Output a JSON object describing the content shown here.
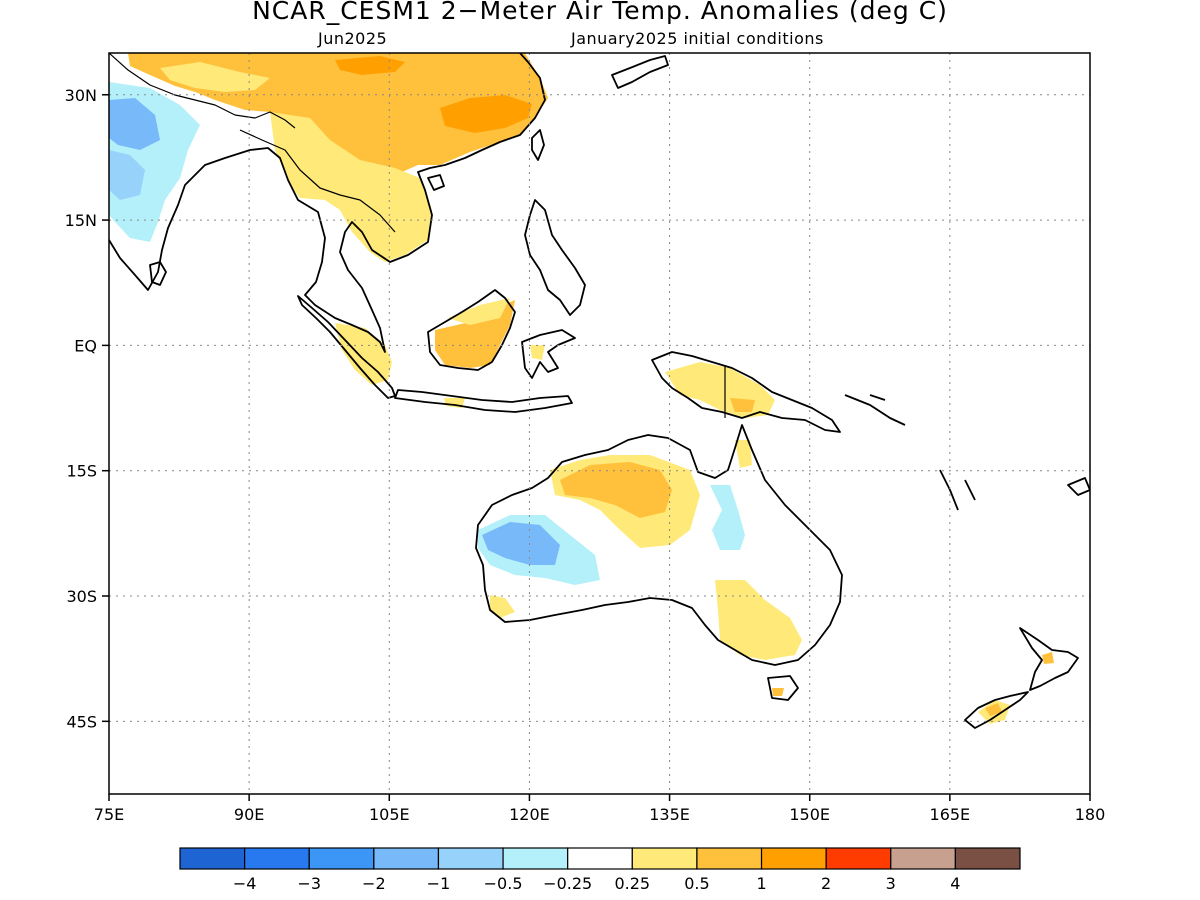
{
  "title": "NCAR_CESM1 2−Meter Air Temp. Anomalies (deg C)",
  "subtitle_left": "Jun2025",
  "subtitle_right": "January2025 initial conditions",
  "chart_data": {
    "type": "map",
    "lon_range": [
      75,
      180
    ],
    "lat_range": [
      -55,
      35
    ],
    "lat_ticks": [
      {
        "value": 30,
        "label": "30N"
      },
      {
        "value": 15,
        "label": "15N"
      },
      {
        "value": 0,
        "label": "EQ"
      },
      {
        "value": -15,
        "label": "15S"
      },
      {
        "value": -30,
        "label": "30S"
      },
      {
        "value": -45,
        "label": "45S"
      }
    ],
    "lon_ticks": [
      {
        "value": 75,
        "label": "75E"
      },
      {
        "value": 90,
        "label": "90E"
      },
      {
        "value": 105,
        "label": "105E"
      },
      {
        "value": 120,
        "label": "120E"
      },
      {
        "value": 135,
        "label": "135E"
      },
      {
        "value": 150,
        "label": "150E"
      },
      {
        "value": 165,
        "label": "165E"
      },
      {
        "value": 180,
        "label": "180"
      }
    ],
    "grid": "dotted",
    "colorbar": {
      "colors": [
        "#1e64d2",
        "#2878f0",
        "#3c96f5",
        "#78b9fa",
        "#96d2fa",
        "#b4f0fa",
        "#ffffff",
        "#ffe978",
        "#ffc03c",
        "#ffa000",
        "#ff3c00",
        "#c8a090",
        "#7a5045"
      ],
      "labels": [
        "−4",
        "−3",
        "−2",
        "−1",
        "−0.5",
        "−0.25",
        "0.25",
        "0.5",
        "1",
        "2",
        "3",
        "4"
      ]
    }
  }
}
